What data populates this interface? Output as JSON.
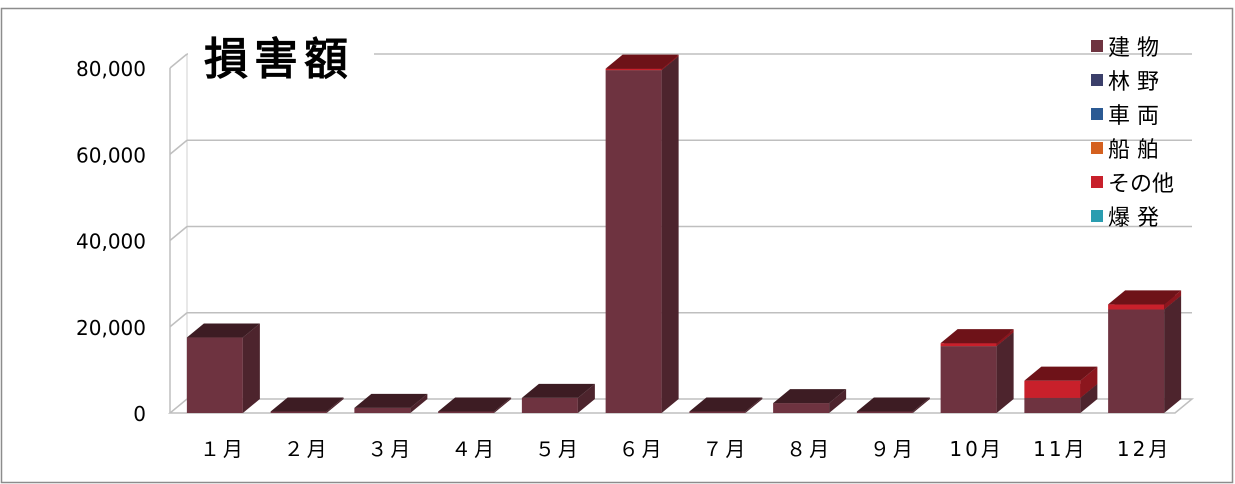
{
  "chart_data": {
    "type": "bar",
    "stacked": true,
    "three_d": true,
    "title": "損害額",
    "categories": [
      "１月",
      "２月",
      "３月",
      "４月",
      "５月",
      "６月",
      "７月",
      "８月",
      "９月",
      "10月",
      "11月",
      "12月"
    ],
    "series": [
      {
        "name": "建 物",
        "color": "#6e3340",
        "values": [
          17500,
          100,
          1200,
          100,
          3500,
          79500,
          100,
          2300,
          100,
          15500,
          3500,
          24000
        ]
      },
      {
        "name": "林 野",
        "color": "#3b3f6a",
        "values": [
          0,
          0,
          0,
          0,
          0,
          0,
          0,
          0,
          0,
          0,
          0,
          0
        ]
      },
      {
        "name": "車 両",
        "color": "#2b5a93",
        "values": [
          0,
          0,
          0,
          0,
          0,
          0,
          0,
          0,
          0,
          0,
          0,
          0
        ]
      },
      {
        "name": "船 舶",
        "color": "#d4601f",
        "values": [
          0,
          0,
          0,
          0,
          0,
          0,
          0,
          0,
          0,
          0,
          0,
          0
        ]
      },
      {
        "name": "その他",
        "color": "#c8202b",
        "values": [
          0,
          0,
          0,
          0,
          0,
          300,
          0,
          0,
          0,
          700,
          4000,
          1200
        ]
      },
      {
        "name": "爆 発",
        "color": "#2a9db0",
        "values": [
          0,
          0,
          0,
          0,
          0,
          0,
          0,
          0,
          0,
          0,
          0,
          0
        ]
      }
    ],
    "yticks": [
      "0",
      "20,000",
      "40,000",
      "60,000",
      "80,000"
    ],
    "ytick_values": [
      0,
      20000,
      40000,
      60000,
      80000
    ],
    "ylim": [
      0,
      80000
    ],
    "grid": true,
    "legend_position": "top-right"
  }
}
